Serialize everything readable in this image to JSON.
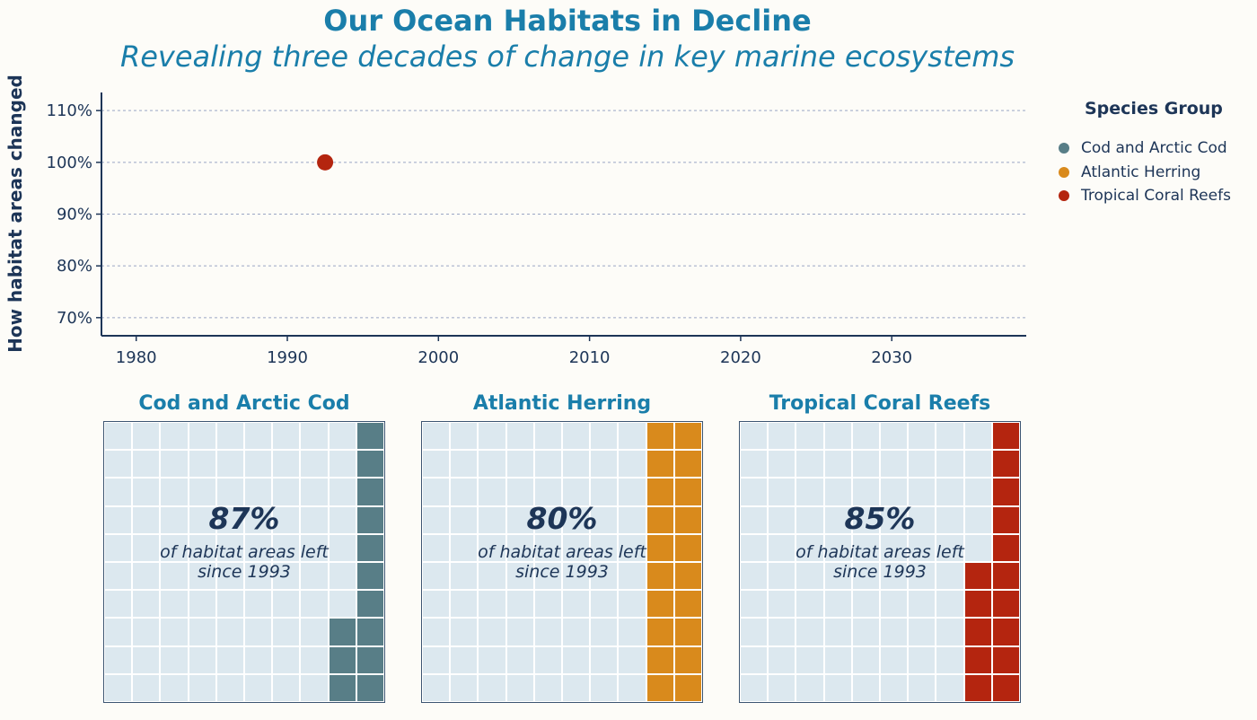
{
  "header": {
    "title": "Our Ocean Habitats in Decline",
    "subtitle": "Revealing three decades of change in key marine ecosystems"
  },
  "chart_data": [
    {
      "type": "scatter",
      "title": "Our Ocean Habitats in Decline",
      "subtitle": "Revealing three decades of change in key marine ecosystems",
      "xlabel": "",
      "ylabel": "How habitat areas changed",
      "xlim": [
        1977.7,
        2038.9
      ],
      "ylim": [
        66.5,
        113.5
      ],
      "xticks": [
        1980,
        1990,
        2000,
        2010,
        2020,
        2030
      ],
      "xtick_labels": [
        "1980",
        "1990",
        "2000",
        "2010",
        "2020",
        "2030"
      ],
      "yticks": [
        70,
        80,
        90,
        100,
        110
      ],
      "ytick_labels": [
        "70%",
        "80%",
        "90%",
        "100%",
        "110%"
      ],
      "grid": "horizontal dotted",
      "legend_title": "Species Group",
      "legend_position": "right",
      "series": [
        {
          "name": "Cod and Arctic Cod",
          "color": "#587e87",
          "points": []
        },
        {
          "name": "Atlantic Herring",
          "color": "#d98a1c",
          "points": []
        },
        {
          "name": "Tropical Coral Reefs",
          "color": "#b4250f",
          "points": [
            {
              "x": 1992.5,
              "y": 100
            }
          ]
        }
      ]
    },
    {
      "type": "waffle",
      "title": "Cod and Arctic Cod",
      "value": 87,
      "value_label": "87%",
      "description": [
        "of habitat areas left",
        "since 1993"
      ],
      "color": "#587e87",
      "empty_color": "#dce8ef",
      "grid": [
        10,
        10
      ],
      "filled_cells": 13
    },
    {
      "type": "waffle",
      "title": "Atlantic Herring",
      "value": 80,
      "value_label": "80%",
      "description": [
        "of habitat areas left",
        "since 1993"
      ],
      "color": "#d98a1c",
      "empty_color": "#dce8ef",
      "grid": [
        10,
        10
      ],
      "filled_cells": 20
    },
    {
      "type": "waffle",
      "title": "Tropical Coral Reefs",
      "value": 85,
      "value_label": "85%",
      "description": [
        "of habitat areas left",
        "since 1993"
      ],
      "color": "#b4250f",
      "empty_color": "#dce8ef",
      "grid": [
        10,
        10
      ],
      "filled_cells": 15
    }
  ]
}
